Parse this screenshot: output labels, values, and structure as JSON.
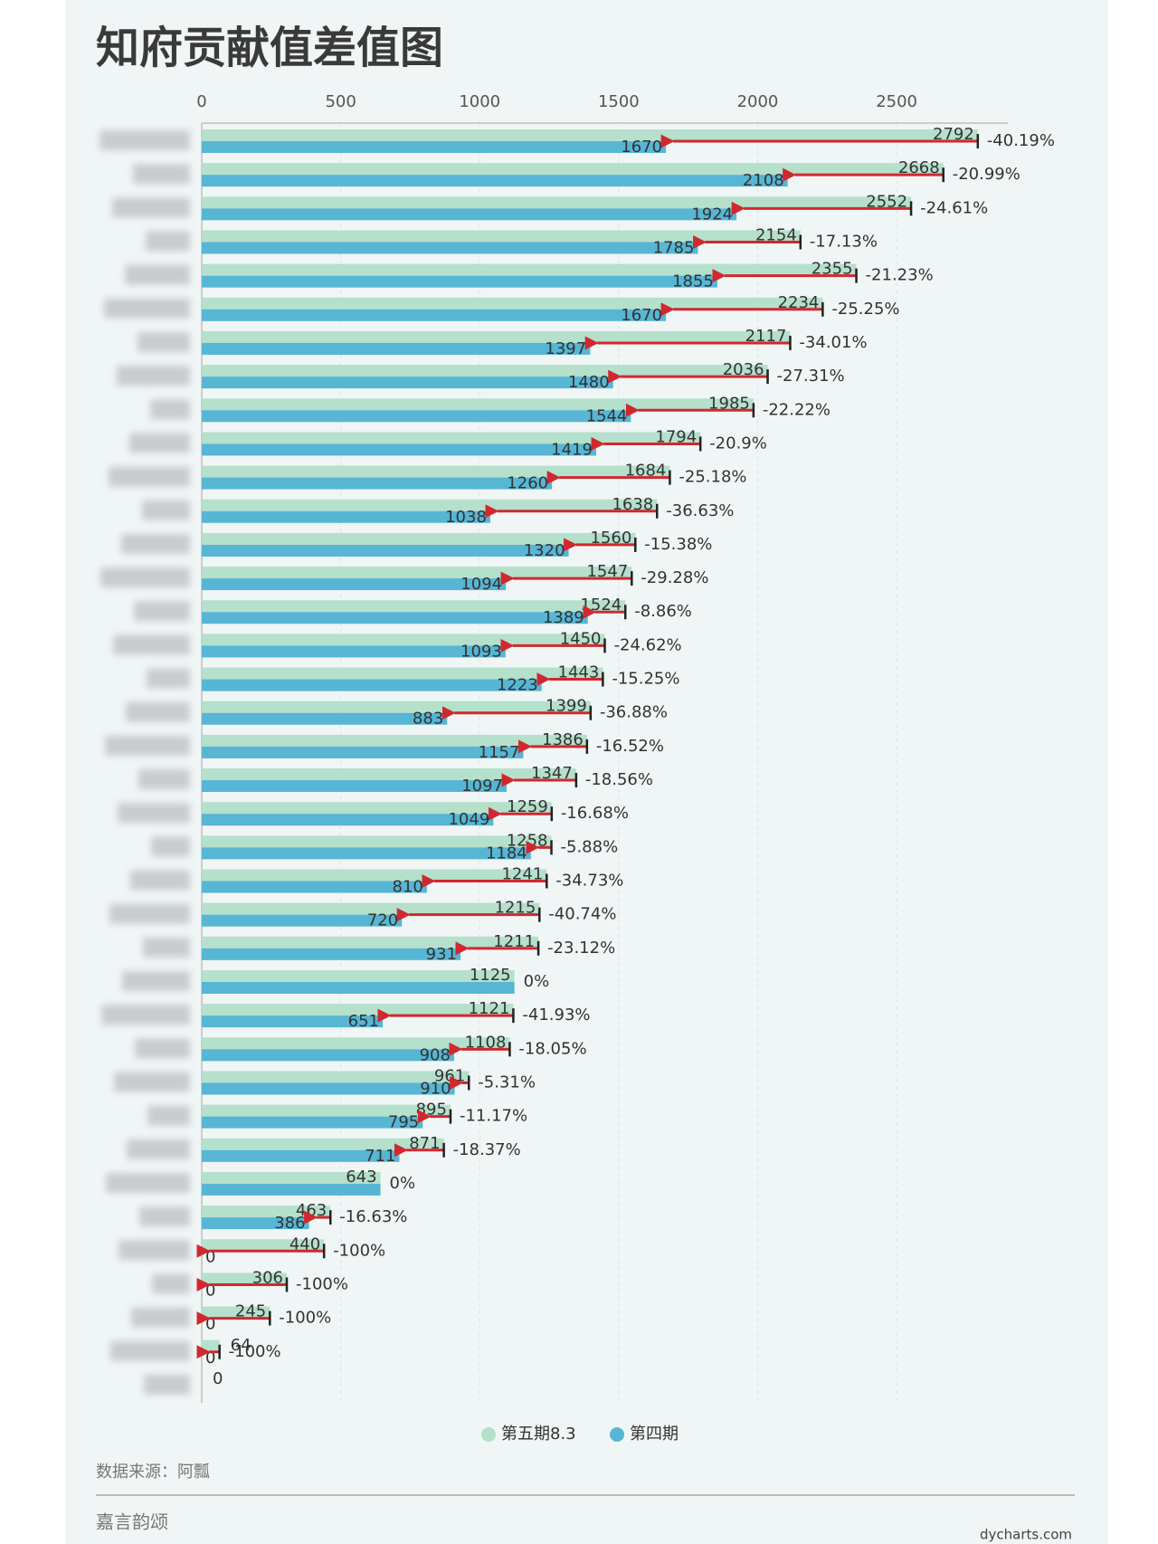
{
  "chart_data": {
    "type": "bar",
    "orientation": "horizontal",
    "title": "知府贡献值差值图",
    "categories": [
      null,
      null,
      null,
      null,
      null,
      null,
      null,
      null,
      null,
      null,
      null,
      null,
      null,
      null,
      null,
      null,
      null,
      null,
      null,
      null,
      null,
      null,
      null,
      null,
      null,
      null,
      null,
      null,
      null,
      null,
      null,
      null,
      null,
      null,
      null,
      null,
      null,
      null
    ],
    "series": [
      {
        "name": "第五期8.3",
        "color": "#b5e0cc",
        "values": [
          2792,
          2668,
          2552,
          2154,
          2355,
          2234,
          2117,
          2036,
          1985,
          1794,
          1684,
          1638,
          1560,
          1547,
          1524,
          1450,
          1443,
          1399,
          1386,
          1347,
          1259,
          1258,
          1241,
          1215,
          1211,
          1125,
          1121,
          1108,
          961,
          895,
          871,
          643,
          463,
          440,
          306,
          245,
          64,
          0
        ]
      },
      {
        "name": "第四期",
        "color": "#56b6d4",
        "values": [
          1670,
          2108,
          1924,
          1785,
          1855,
          1670,
          1397,
          1480,
          1544,
          1419,
          1260,
          1038,
          1320,
          1094,
          1389,
          1093,
          1223,
          883,
          1157,
          1097,
          1049,
          1184,
          810,
          720,
          931,
          1125,
          651,
          908,
          910,
          795,
          711,
          643,
          386,
          0,
          0,
          0,
          0,
          0
        ]
      }
    ],
    "changes": [
      -40.19,
      -20.99,
      -24.61,
      -17.13,
      -21.23,
      -25.25,
      -34.01,
      -27.31,
      -22.22,
      -20.9,
      -25.18,
      -36.63,
      -15.38,
      -29.28,
      -8.86,
      -24.62,
      -15.25,
      -36.88,
      -16.52,
      -18.56,
      -16.68,
      -5.88,
      -34.73,
      -40.74,
      -23.12,
      0,
      -41.93,
      -18.05,
      -5.31,
      -11.17,
      -18.37,
      0,
      -16.63,
      -100,
      -100,
      -100,
      -100,
      null
    ],
    "change_labels": [
      "-40.19%",
      "-20.99%",
      "-24.61%",
      "-17.13%",
      "-21.23%",
      "-25.25%",
      "-34.01%",
      "-27.31%",
      "-22.22%",
      "-20.9%",
      "-25.18%",
      "-36.63%",
      "-15.38%",
      "-29.28%",
      "-8.86%",
      "-24.62%",
      "-15.25%",
      "-36.88%",
      "-16.52%",
      "-18.56%",
      "-16.68%",
      "-5.88%",
      "-34.73%",
      "-40.74%",
      "-23.12%",
      "0%",
      "-41.93%",
      "-18.05%",
      "-5.31%",
      "-11.17%",
      "-18.37%",
      "0%",
      "-16.63%",
      "-100%",
      "-100%",
      "-100%",
      "-100%",
      null
    ],
    "xlim": [
      0,
      2900
    ],
    "xticks": [
      0,
      500,
      1000,
      1500,
      2000,
      2500
    ],
    "grid": true,
    "arrow_color": "#d0282e",
    "source": "数据来源：阿瓢",
    "footer": "嘉言韵颂",
    "credit": "dycharts.com"
  }
}
